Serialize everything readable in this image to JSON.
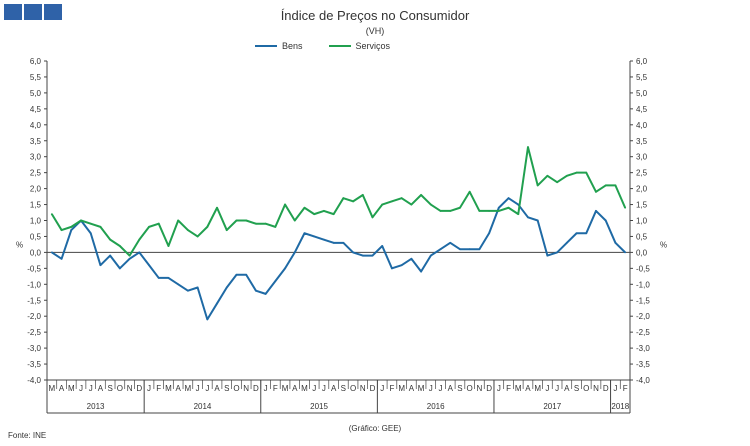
{
  "header": {
    "title": "Índice de Preços no Consumidor",
    "subtitle": "(VH)"
  },
  "footer": {
    "source": "Fonte: INE",
    "credit": "(Gráfico: GEE)"
  },
  "colors": {
    "bens": "#1f6aa5",
    "servicos": "#21a04f",
    "axis": "#444444",
    "logo": "#2f62a8"
  },
  "icons": {
    "logo": "gee-logo-icon"
  },
  "chart_data": {
    "type": "line",
    "title": "Índice de Preços no Consumidor",
    "subtitle": "(VH)",
    "ylabel_left": "%",
    "ylabel_right": "%",
    "ylim": [
      -4.0,
      6.0
    ],
    "yticks": [
      "6,0",
      "5,5",
      "5,0",
      "4,5",
      "4,0",
      "3,5",
      "3,0",
      "2,5",
      "2,0",
      "1,5",
      "1,0",
      "0,5",
      "0,0",
      "-0,5",
      "-1,0",
      "-1,5",
      "-2,0",
      "-2,5",
      "-3,0",
      "-3,5",
      "-4,0"
    ],
    "legend_position": "top-center",
    "grid": false,
    "month_labels": [
      "M",
      "A",
      "M",
      "J",
      "J",
      "A",
      "S",
      "O",
      "N",
      "D",
      "J",
      "F",
      "M",
      "A",
      "M",
      "J",
      "J",
      "A",
      "S",
      "O",
      "N",
      "D",
      "J",
      "F",
      "M",
      "A",
      "M",
      "J",
      "J",
      "A",
      "S",
      "O",
      "N",
      "D",
      "J",
      "F",
      "M",
      "A",
      "M",
      "J",
      "J",
      "A",
      "S",
      "O",
      "N",
      "D",
      "J",
      "F",
      "M",
      "A",
      "M",
      "J",
      "J",
      "A",
      "S",
      "O",
      "N",
      "D",
      "J",
      "F"
    ],
    "years": [
      {
        "label": "2013",
        "start": 0,
        "end": 9
      },
      {
        "label": "2014",
        "start": 10,
        "end": 21
      },
      {
        "label": "2015",
        "start": 22,
        "end": 33
      },
      {
        "label": "2016",
        "start": 34,
        "end": 45
      },
      {
        "label": "2017",
        "start": 46,
        "end": 57
      },
      {
        "label": "2018",
        "start": 58,
        "end": 59
      }
    ],
    "x": [
      "2013-03",
      "2013-04",
      "2013-05",
      "2013-06",
      "2013-07",
      "2013-08",
      "2013-09",
      "2013-10",
      "2013-11",
      "2013-12",
      "2014-01",
      "2014-02",
      "2014-03",
      "2014-04",
      "2014-05",
      "2014-06",
      "2014-07",
      "2014-08",
      "2014-09",
      "2014-10",
      "2014-11",
      "2014-12",
      "2015-01",
      "2015-02",
      "2015-03",
      "2015-04",
      "2015-05",
      "2015-06",
      "2015-07",
      "2015-08",
      "2015-09",
      "2015-10",
      "2015-11",
      "2015-12",
      "2016-01",
      "2016-02",
      "2016-03",
      "2016-04",
      "2016-05",
      "2016-06",
      "2016-07",
      "2016-08",
      "2016-09",
      "2016-10",
      "2016-11",
      "2016-12",
      "2017-01",
      "2017-02",
      "2017-03",
      "2017-04",
      "2017-05",
      "2017-06",
      "2017-07",
      "2017-08",
      "2017-09",
      "2017-10",
      "2017-11",
      "2017-12",
      "2018-01",
      "2018-02"
    ],
    "series": [
      {
        "name": "Bens",
        "color": "#1f6aa5",
        "values": [
          0.0,
          -0.2,
          0.7,
          1.0,
          0.6,
          -0.4,
          -0.1,
          -0.5,
          -0.2,
          0.0,
          -0.4,
          -0.8,
          -0.8,
          -1.0,
          -1.2,
          -1.1,
          -2.1,
          -1.6,
          -1.1,
          -0.7,
          -0.7,
          -1.2,
          -1.3,
          -0.9,
          -0.5,
          0.0,
          0.6,
          0.5,
          0.4,
          0.3,
          0.3,
          0.0,
          -0.1,
          -0.1,
          0.2,
          -0.5,
          -0.4,
          -0.2,
          -0.6,
          -0.1,
          0.1,
          0.3,
          0.1,
          0.1,
          0.1,
          0.6,
          1.4,
          1.7,
          1.5,
          1.1,
          1.0,
          -0.1,
          0.0,
          0.3,
          0.6,
          0.6,
          1.3,
          1.0,
          0.3,
          0.0
        ]
      },
      {
        "name": "Serviços",
        "color": "#21a04f",
        "values": [
          1.2,
          0.7,
          0.8,
          1.0,
          0.9,
          0.8,
          0.4,
          0.2,
          -0.1,
          0.4,
          0.8,
          0.9,
          0.2,
          1.0,
          0.7,
          0.5,
          0.8,
          1.4,
          0.7,
          1.0,
          1.0,
          0.9,
          0.9,
          0.8,
          1.5,
          1.0,
          1.4,
          1.2,
          1.3,
          1.2,
          1.7,
          1.6,
          1.8,
          1.1,
          1.5,
          1.6,
          1.7,
          1.5,
          1.8,
          1.5,
          1.3,
          1.3,
          1.4,
          1.9,
          1.3,
          1.3,
          1.3,
          1.4,
          1.2,
          3.3,
          2.1,
          2.4,
          2.2,
          2.4,
          2.5,
          2.5,
          1.9,
          2.1,
          2.1,
          1.4
        ]
      }
    ]
  }
}
